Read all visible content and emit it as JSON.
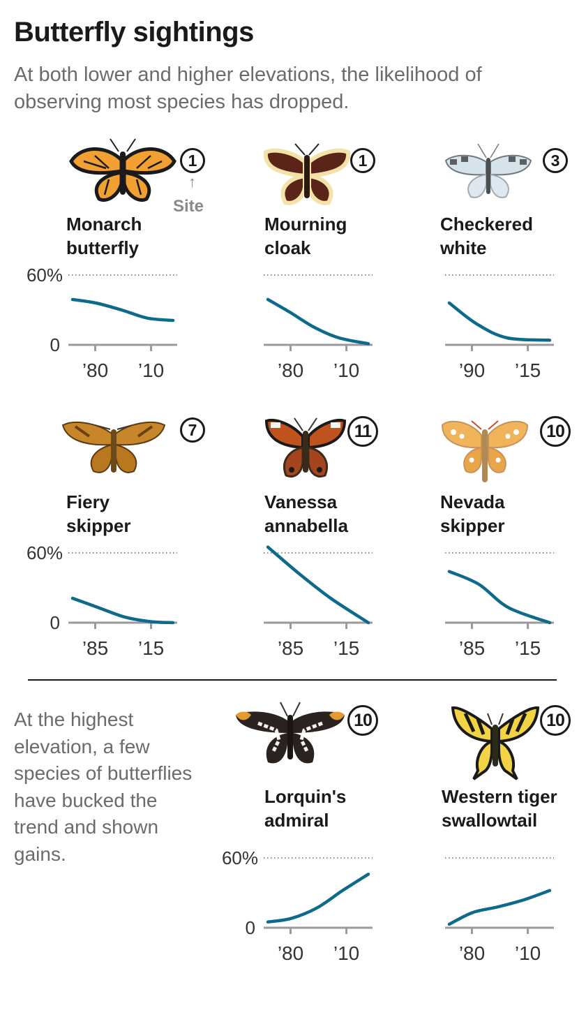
{
  "header": {
    "title": "Butterfly sightings",
    "subtitle": "At both lower and higher elevations, the likelihood of observing most species has dropped."
  },
  "site_note": "Site",
  "highest_note": "At the highest elevation, a few species of butterflies have bucked the trend and shown gains.",
  "colors": {
    "line": "#0e6a8a",
    "axis": "#9a9a9a",
    "text": "#1a1a1a",
    "muted": "#6b6b6b"
  },
  "chart_data": [
    {
      "type": "line",
      "name": "Monarch\nbutterfly",
      "site": "1",
      "icon": "monarch-butterfly-icon",
      "ylim": [
        0,
        60
      ],
      "ytick_labels": [
        "60%",
        "0"
      ],
      "xtick_labels": [
        "’80",
        "’10"
      ],
      "x": [
        1976,
        1985,
        1995,
        2005,
        2015
      ],
      "y": [
        39,
        36,
        30,
        23,
        21
      ]
    },
    {
      "type": "line",
      "name": "Mourning\ncloak",
      "site": "1",
      "icon": "mourning-cloak-butterfly-icon",
      "ylim": [
        0,
        60
      ],
      "ytick_labels": [],
      "xtick_labels": [
        "’80",
        "’10"
      ],
      "x": [
        1976,
        1985,
        1995,
        2005,
        2017
      ],
      "y": [
        39,
        28,
        15,
        6,
        1
      ]
    },
    {
      "type": "line",
      "name": "Checkered\nwhite",
      "site": "3",
      "icon": "checkered-white-butterfly-icon",
      "ylim": [
        0,
        60
      ],
      "ytick_labels": [],
      "xtick_labels": [
        "’90",
        "’15"
      ],
      "x": [
        1986,
        1995,
        2005,
        2019
      ],
      "y": [
        36,
        18,
        6,
        4
      ]
    },
    {
      "type": "line",
      "name": "Fiery\nskipper",
      "site": "7",
      "icon": "fiery-skipper-butterfly-icon",
      "ylim": [
        0,
        60
      ],
      "ytick_labels": [
        "60%",
        "0"
      ],
      "xtick_labels": [
        "’85",
        "’15"
      ],
      "x": [
        1980,
        1990,
        2000,
        2010,
        2019
      ],
      "y": [
        21,
        13,
        5,
        1,
        0
      ]
    },
    {
      "type": "line",
      "name": "Vanessa\nannabella",
      "site": "11",
      "icon": "vanessa-annabella-butterfly-icon",
      "ylim": [
        0,
        60
      ],
      "ytick_labels": [],
      "xtick_labels": [
        "’85",
        "’15"
      ],
      "x": [
        1985,
        1995,
        2005,
        2017
      ],
      "y": [
        65,
        42,
        21,
        0
      ]
    },
    {
      "type": "line",
      "name": "Nevada\nskipper",
      "site": "10",
      "icon": "nevada-skipper-butterfly-icon",
      "ylim": [
        0,
        60
      ],
      "ytick_labels": [],
      "xtick_labels": [
        "’85",
        "’15"
      ],
      "x": [
        1985,
        1995,
        2005,
        2019
      ],
      "y": [
        44,
        33,
        13,
        0
      ]
    },
    {
      "type": "line",
      "name": "Lorquin's\nadmiral",
      "site": "10",
      "icon": "lorquins-admiral-butterfly-icon",
      "ylim": [
        0,
        60
      ],
      "ytick_labels": [
        "60%",
        "0"
      ],
      "xtick_labels": [
        "’80",
        "’10"
      ],
      "x": [
        1976,
        1985,
        1995,
        2005,
        2015
      ],
      "y": [
        5,
        8,
        17,
        32,
        46
      ]
    },
    {
      "type": "line",
      "name": "Western tiger\nswallowtail",
      "site": "10",
      "icon": "western-tiger-swallowtail-butterfly-icon",
      "ylim": [
        0,
        60
      ],
      "ytick_labels": [],
      "xtick_labels": [
        "’80",
        "’10"
      ],
      "x": [
        1976,
        1985,
        1995,
        2005,
        2015
      ],
      "y": [
        3,
        13,
        18,
        24,
        32
      ]
    }
  ]
}
